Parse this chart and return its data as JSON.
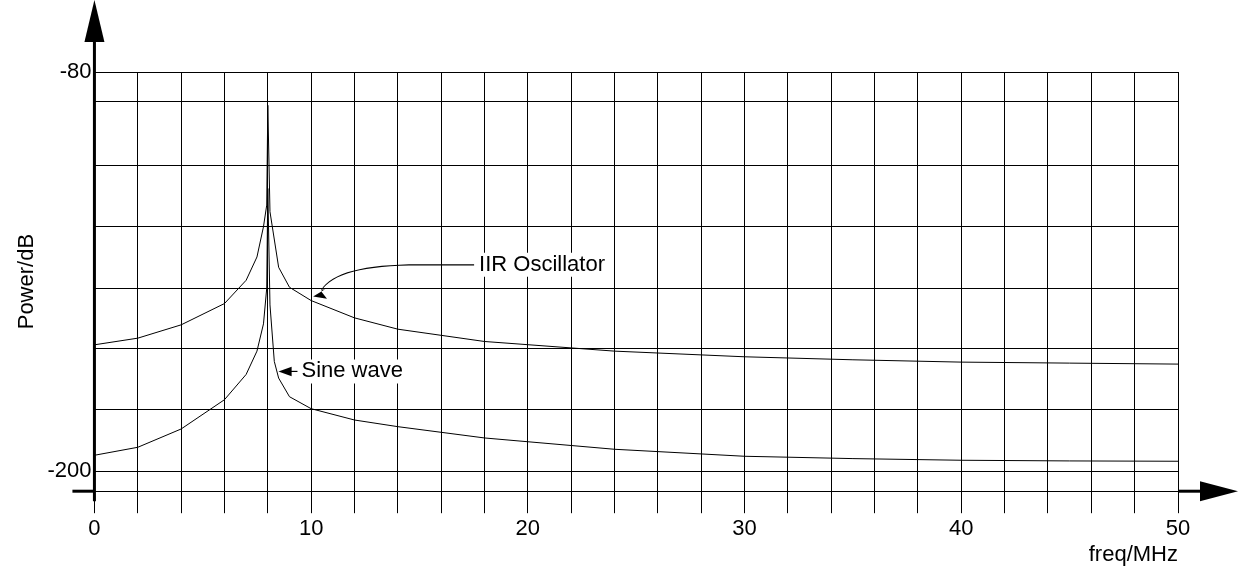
{
  "chart_data": {
    "type": "line",
    "xlabel": "freq/MHz",
    "ylabel": "Power/dB",
    "xlim": [
      0,
      50
    ],
    "ylim": [
      -206,
      -80
    ],
    "xticks": [
      0,
      {
        "value": 2,
        "label": null
      },
      {
        "value": 4,
        "label": null
      },
      {
        "value": 6,
        "label": null
      },
      {
        "value": 8,
        "label": null
      },
      10,
      {
        "value": 12,
        "label": null
      },
      {
        "value": 14,
        "label": null
      },
      {
        "value": 16,
        "label": null
      },
      {
        "value": 18,
        "label": null
      },
      20,
      {
        "value": 22,
        "label": null
      },
      {
        "value": 24,
        "label": null
      },
      {
        "value": 26,
        "label": null
      },
      {
        "value": 28,
        "label": null
      },
      30,
      {
        "value": 32,
        "label": null
      },
      {
        "value": 34,
        "label": null
      },
      {
        "value": 36,
        "label": null
      },
      {
        "value": 38,
        "label": null
      },
      40,
      {
        "value": 42,
        "label": null
      },
      {
        "value": 44,
        "label": null
      },
      {
        "value": 46,
        "label": null
      },
      {
        "value": 48,
        "label": null
      },
      50
    ],
    "yticks": [
      -200,
      {
        "value": -181.5,
        "label": null
      },
      {
        "value": -163,
        "label": null
      },
      {
        "value": -145,
        "label": null
      },
      {
        "value": -126.5,
        "label": null
      },
      {
        "value": -108,
        "label": null
      },
      {
        "value": -89,
        "label": null
      },
      -80
    ],
    "grid": true,
    "legend": false,
    "marker": "none",
    "line_style": "solid",
    "series": [
      {
        "color": "#000000",
        "x": [
          0,
          2,
          4,
          6,
          7,
          7.5,
          7.8,
          7.95,
          8,
          8.1,
          8.5,
          9,
          10,
          12,
          14,
          18,
          24,
          30,
          35,
          40,
          45,
          50
        ],
        "values": [
          -162,
          -160,
          -156,
          -149.6,
          -142.6,
          -135.6,
          -126.5,
          -120,
          -90,
          -122,
          -138.7,
          -144.7,
          -148.7,
          -153.9,
          -157.3,
          -161,
          -163.9,
          -165.6,
          -166.5,
          -167.2,
          -167.5,
          -167.8
        ]
      },
      {
        "color": "#000000",
        "x": [
          0,
          2,
          4,
          6,
          7,
          7.5,
          7.8,
          7.95,
          8,
          8.1,
          8.3,
          8.5,
          9,
          10,
          12,
          14,
          18,
          24,
          30,
          35,
          40,
          45,
          50
        ],
        "values": [
          -195.2,
          -192.8,
          -187.3,
          -178.5,
          -170.9,
          -163.9,
          -155.7,
          -145,
          -115,
          -150,
          -167,
          -172,
          -177.6,
          -181.2,
          -184.6,
          -186.6,
          -190,
          -193.4,
          -195.5,
          -196.2,
          -196.7,
          -196.9,
          -197
        ]
      }
    ],
    "annotations": [
      "IIR Oscillator",
      {
        "text": "Sine wave",
        "x": 8.4,
        "y": -170
      }
    ]
  }
}
